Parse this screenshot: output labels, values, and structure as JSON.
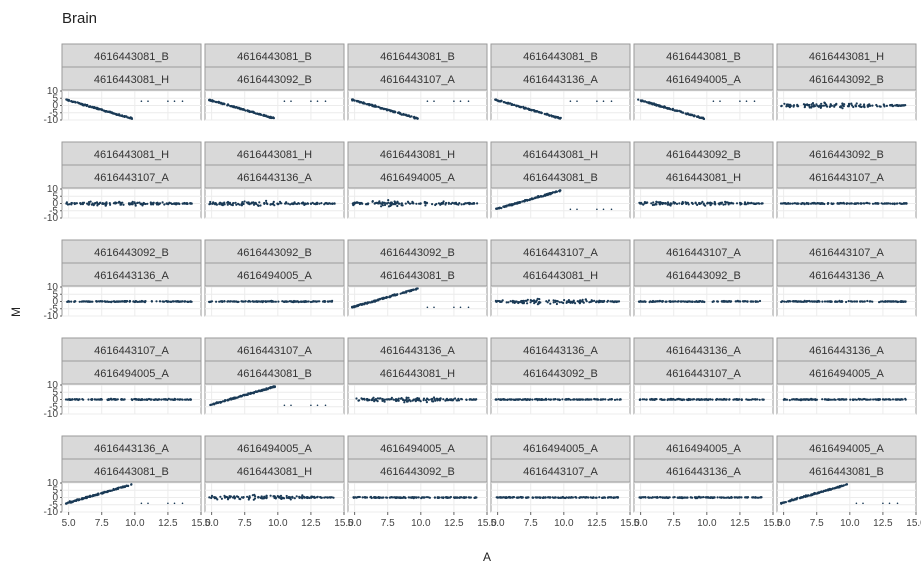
{
  "chart_data": {
    "type": "scatter",
    "title": "Brain",
    "xlabel": "A",
    "ylabel": "M",
    "xlim": [
      4.5,
      15.0
    ],
    "ylim": [
      -10,
      10
    ],
    "x_ticks": [
      "5.0",
      "7.5",
      "10.0",
      "12.5",
      "15.0"
    ],
    "y_ticks": [
      "10",
      "5",
      "0",
      "-5",
      "-10"
    ],
    "grid": true,
    "panel_color": "#1a3a56",
    "panels": [
      {
        "strip_top": "4616443081_B",
        "strip_bottom": "4616443081_H",
        "pattern": "neg"
      },
      {
        "strip_top": "4616443081_B",
        "strip_bottom": "4616443092_B",
        "pattern": "neg"
      },
      {
        "strip_top": "4616443081_B",
        "strip_bottom": "4616443107_A",
        "pattern": "neg"
      },
      {
        "strip_top": "4616443081_B",
        "strip_bottom": "4616443136_A",
        "pattern": "neg"
      },
      {
        "strip_top": "4616443081_B",
        "strip_bottom": "4616494005_A",
        "pattern": "neg"
      },
      {
        "strip_top": "4616443081_H",
        "strip_bottom": "4616443092_B",
        "pattern": "cloud"
      },
      {
        "strip_top": "4616443081_H",
        "strip_bottom": "4616443107_A",
        "pattern": "cloud"
      },
      {
        "strip_top": "4616443081_H",
        "strip_bottom": "4616443136_A",
        "pattern": "cloud"
      },
      {
        "strip_top": "4616443081_H",
        "strip_bottom": "4616494005_A",
        "pattern": "cloud"
      },
      {
        "strip_top": "4616443081_H",
        "strip_bottom": "4616443081_B",
        "pattern": "pos"
      },
      {
        "strip_top": "4616443092_B",
        "strip_bottom": "4616443081_H",
        "pattern": "cloud"
      },
      {
        "strip_top": "4616443092_B",
        "strip_bottom": "4616443107_A",
        "pattern": "flat"
      },
      {
        "strip_top": "4616443092_B",
        "strip_bottom": "4616443136_A",
        "pattern": "flat"
      },
      {
        "strip_top": "4616443092_B",
        "strip_bottom": "4616494005_A",
        "pattern": "flat"
      },
      {
        "strip_top": "4616443092_B",
        "strip_bottom": "4616443081_B",
        "pattern": "pos"
      },
      {
        "strip_top": "4616443107_A",
        "strip_bottom": "4616443081_H",
        "pattern": "cloud"
      },
      {
        "strip_top": "4616443107_A",
        "strip_bottom": "4616443092_B",
        "pattern": "flat"
      },
      {
        "strip_top": "4616443107_A",
        "strip_bottom": "4616443136_A",
        "pattern": "flat"
      },
      {
        "strip_top": "4616443107_A",
        "strip_bottom": "4616494005_A",
        "pattern": "flat"
      },
      {
        "strip_top": "4616443107_A",
        "strip_bottom": "4616443081_B",
        "pattern": "pos"
      },
      {
        "strip_top": "4616443136_A",
        "strip_bottom": "4616443081_H",
        "pattern": "cloud"
      },
      {
        "strip_top": "4616443136_A",
        "strip_bottom": "4616443092_B",
        "pattern": "flat"
      },
      {
        "strip_top": "4616443136_A",
        "strip_bottom": "4616443107_A",
        "pattern": "flat"
      },
      {
        "strip_top": "4616443136_A",
        "strip_bottom": "4616494005_A",
        "pattern": "flat"
      },
      {
        "strip_top": "4616443136_A",
        "strip_bottom": "4616443081_B",
        "pattern": "pos"
      },
      {
        "strip_top": "4616494005_A",
        "strip_bottom": "4616443081_H",
        "pattern": "cloud"
      },
      {
        "strip_top": "4616494005_A",
        "strip_bottom": "4616443092_B",
        "pattern": "flat"
      },
      {
        "strip_top": "4616494005_A",
        "strip_bottom": "4616443107_A",
        "pattern": "flat"
      },
      {
        "strip_top": "4616494005_A",
        "strip_bottom": "4616443136_A",
        "pattern": "flat"
      },
      {
        "strip_top": "4616494005_A",
        "strip_bottom": "4616443081_B",
        "pattern": "pos"
      }
    ]
  }
}
